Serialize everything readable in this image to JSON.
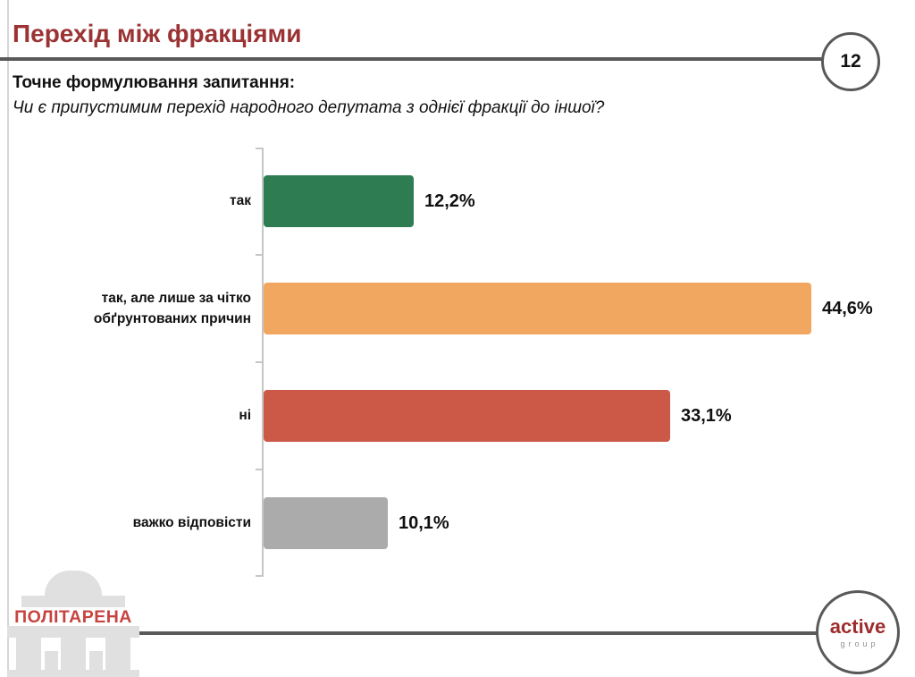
{
  "slide": {
    "title": "Перехід між фракціями",
    "page_number": "12",
    "question_heading": "Точне формулювання запитання:",
    "question_text": "Чи є припустимим перехід народного депутата з однієї фракції до іншої?"
  },
  "chart_data": {
    "type": "bar",
    "orientation": "horizontal",
    "title": "",
    "xlabel": "",
    "ylabel": "",
    "xlim": [
      0,
      50
    ],
    "grid": false,
    "legend": false,
    "categories": [
      "так",
      "так, але лише за чітко обґрунтованих причин",
      "ні",
      "важко відповісти"
    ],
    "values": [
      12.2,
      44.6,
      33.1,
      10.1
    ],
    "rows": [
      {
        "label": "так",
        "value": 12.2,
        "value_label": "12,2%",
        "color": "#2e7d52"
      },
      {
        "label": "так, але лише за чітко\nобґрунтованих причин",
        "value": 44.6,
        "value_label": "44,6%",
        "color": "#f2a760"
      },
      {
        "label": "ні",
        "value": 33.1,
        "value_label": "33,1%",
        "color": "#cc5847"
      },
      {
        "label": "важко відповісти",
        "value": 10.1,
        "value_label": "10,1%",
        "color": "#ababab"
      }
    ]
  },
  "footer": {
    "left_logo_text": "ПОЛІТАРЕНА",
    "right_logo_line1": "active",
    "right_logo_line2": "group"
  },
  "colors": {
    "title_red": "#9b3334",
    "divider_gray": "#595959",
    "axis_gray": "#c6c6c6",
    "logo_building_gray": "#e0e0e0",
    "logo_text_red": "#c64440",
    "active_red": "#9e2b2b"
  }
}
